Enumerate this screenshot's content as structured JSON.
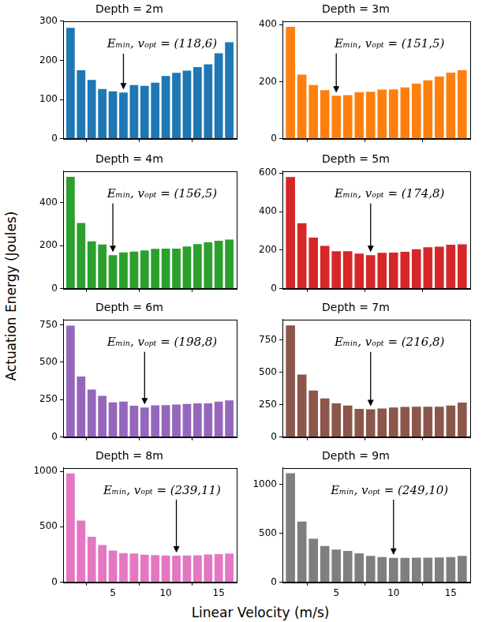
{
  "xlabel": "Linear Velocity (m/s)",
  "ylabel": "Actuation Energy (Joules)",
  "chart_data": [
    {
      "type": "bar",
      "title": "Depth = 2m",
      "color": "#1f77b4",
      "x": [
        1,
        2,
        3,
        4,
        5,
        6,
        7,
        8,
        9,
        10,
        11,
        12,
        13,
        14,
        15,
        16
      ],
      "values": [
        283,
        175,
        150,
        127,
        121,
        118,
        137,
        135,
        143,
        160,
        168,
        174,
        183,
        190,
        218,
        246
      ],
      "xlim": [
        0.3,
        16.7
      ],
      "xticks": [
        5,
        10,
        15
      ],
      "ylim": [
        0,
        300
      ],
      "yticks": [
        0,
        100,
        200,
        300
      ],
      "grid": false,
      "tick_labels": "y",
      "annotations": [
        {
          "text": "Eₘᵢₙ, vₒₚₜ = (118,6)",
          "x": 6,
          "y": 118
        }
      ]
    },
    {
      "type": "bar",
      "title": "Depth = 3m",
      "color": "#ff7f0e",
      "x": [
        1,
        2,
        3,
        4,
        5,
        6,
        7,
        8,
        9,
        10,
        11,
        12,
        13,
        14,
        15,
        16
      ],
      "values": [
        392,
        225,
        188,
        170,
        151,
        153,
        163,
        165,
        172,
        173,
        180,
        193,
        205,
        218,
        232,
        240
      ],
      "xlim": [
        0.3,
        16.7
      ],
      "xticks": [
        5,
        10,
        15
      ],
      "ylim": [
        0,
        412
      ],
      "yticks": [
        0,
        200,
        400
      ],
      "grid": false,
      "tick_labels": "y",
      "annotations": [
        {
          "text": "Eₘᵢₙ, vₒₚₜ = (151,5)",
          "x": 5,
          "y": 151
        }
      ]
    },
    {
      "type": "bar",
      "title": "Depth = 4m",
      "color": "#2ca02c",
      "x": [
        1,
        2,
        3,
        4,
        5,
        6,
        7,
        8,
        9,
        10,
        11,
        12,
        13,
        14,
        15,
        16
      ],
      "values": [
        519,
        305,
        220,
        205,
        156,
        168,
        172,
        178,
        185,
        186,
        186,
        196,
        207,
        215,
        222,
        228
      ],
      "xlim": [
        0.3,
        16.7
      ],
      "xticks": [
        5,
        10,
        15
      ],
      "ylim": [
        0,
        545
      ],
      "yticks": [
        0,
        200,
        400
      ],
      "grid": false,
      "tick_labels": "y",
      "annotations": [
        {
          "text": "Eₘᵢₙ, vₒₚₜ = (156,5)",
          "x": 5,
          "y": 156
        }
      ]
    },
    {
      "type": "bar",
      "title": "Depth = 5m",
      "color": "#d62728",
      "x": [
        1,
        2,
        3,
        4,
        5,
        6,
        7,
        8,
        9,
        10,
        11,
        12,
        13,
        14,
        15,
        16
      ],
      "values": [
        580,
        340,
        265,
        222,
        195,
        195,
        182,
        174,
        186,
        188,
        192,
        205,
        215,
        218,
        228,
        230
      ],
      "xlim": [
        0.3,
        16.7
      ],
      "xticks": [
        5,
        10,
        15
      ],
      "ylim": [
        0,
        610
      ],
      "yticks": [
        0,
        200,
        400,
        600
      ],
      "grid": false,
      "tick_labels": "y",
      "annotations": [
        {
          "text": "Eₘᵢₙ, vₒₚₜ = (174,8)",
          "x": 8,
          "y": 174
        }
      ]
    },
    {
      "type": "bar",
      "title": "Depth = 6m",
      "color": "#9467bd",
      "x": [
        1,
        2,
        3,
        4,
        5,
        6,
        7,
        8,
        9,
        10,
        11,
        12,
        13,
        14,
        15,
        16
      ],
      "values": [
        745,
        405,
        318,
        275,
        232,
        238,
        210,
        198,
        212,
        213,
        218,
        222,
        225,
        225,
        237,
        245
      ],
      "xlim": [
        0.3,
        16.7
      ],
      "xticks": [
        5,
        10,
        15
      ],
      "ylim": [
        0,
        785
      ],
      "yticks": [
        0,
        250,
        500,
        750
      ],
      "grid": false,
      "tick_labels": "y",
      "annotations": [
        {
          "text": "Eₘᵢₙ, vₒₚₜ = (198,8)",
          "x": 8,
          "y": 198
        }
      ]
    },
    {
      "type": "bar",
      "title": "Depth = 7m",
      "color": "#8c564b",
      "x": [
        1,
        2,
        3,
        4,
        5,
        6,
        7,
        8,
        9,
        10,
        11,
        12,
        13,
        14,
        15,
        16
      ],
      "values": [
        865,
        485,
        360,
        300,
        262,
        245,
        219,
        216,
        222,
        230,
        234,
        236,
        236,
        236,
        245,
        268
      ],
      "xlim": [
        0.3,
        16.7
      ],
      "xticks": [
        5,
        10,
        15
      ],
      "ylim": [
        0,
        910
      ],
      "yticks": [
        0,
        250,
        500,
        750
      ],
      "grid": false,
      "tick_labels": "y",
      "annotations": [
        {
          "text": "Eₘᵢₙ, vₒₚₜ = (216,8)",
          "x": 8,
          "y": 216
        }
      ]
    },
    {
      "type": "bar",
      "title": "Depth = 8m",
      "color": "#e377c2",
      "x": [
        1,
        2,
        3,
        4,
        5,
        6,
        7,
        8,
        9,
        10,
        11,
        12,
        13,
        14,
        15,
        16
      ],
      "values": [
        980,
        555,
        410,
        335,
        285,
        262,
        258,
        248,
        244,
        241,
        239,
        240,
        243,
        249,
        254,
        258
      ],
      "xlim": [
        0.3,
        16.7
      ],
      "xticks": [
        5,
        10,
        15
      ],
      "ylim": [
        0,
        1030
      ],
      "yticks": [
        0,
        500,
        1000
      ],
      "grid": false,
      "annotations": [
        {
          "text": "Eₘᵢₙ, vₒₚₜ = (239,11)",
          "x": 11,
          "y": 239
        }
      ]
    },
    {
      "type": "bar",
      "title": "Depth = 9m",
      "color": "#7f7f7f",
      "x": [
        1,
        2,
        3,
        4,
        5,
        6,
        7,
        8,
        9,
        10,
        11,
        12,
        13,
        14,
        15,
        16
      ],
      "values": [
        1115,
        620,
        445,
        370,
        335,
        320,
        295,
        270,
        258,
        249,
        250,
        252,
        252,
        254,
        258,
        270
      ],
      "xlim": [
        0.3,
        16.7
      ],
      "xticks": [
        5,
        10,
        15
      ],
      "ylim": [
        0,
        1170
      ],
      "yticks": [
        0,
        500,
        1000
      ],
      "grid": false,
      "annotations": [
        {
          "text": "Eₘᵢₙ, vₒₚₜ = (249,10)",
          "x": 10,
          "y": 249
        }
      ]
    }
  ]
}
